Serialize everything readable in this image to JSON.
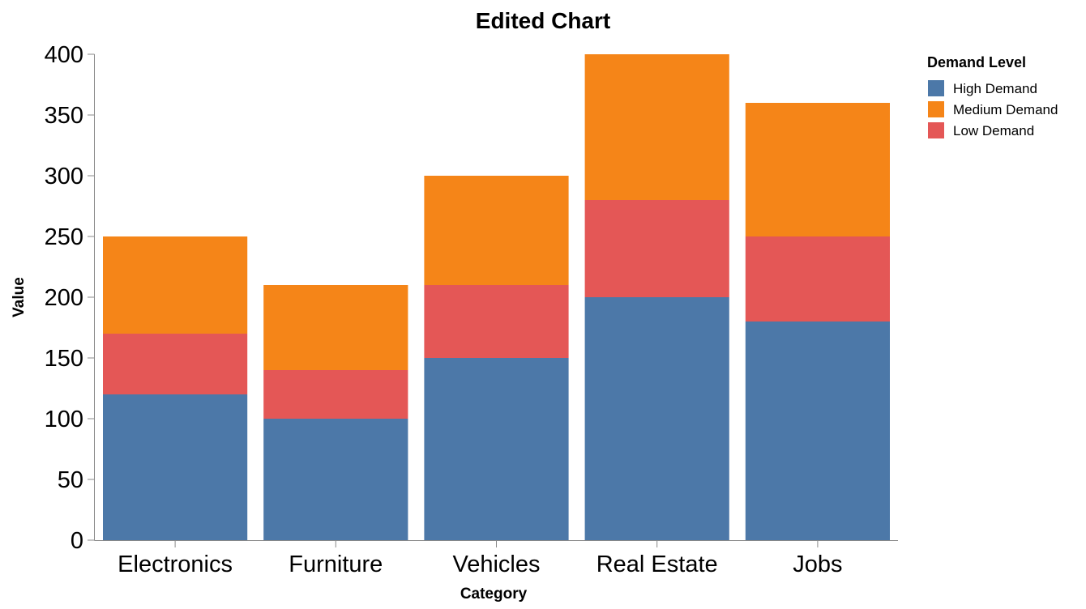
{
  "chart_data": {
    "type": "bar",
    "stacked": true,
    "title": "Edited Chart",
    "xlabel": "Category",
    "ylabel": "Value",
    "ylim": [
      0,
      400
    ],
    "yticks": [
      0,
      50,
      100,
      150,
      200,
      250,
      300,
      350,
      400
    ],
    "categories": [
      "Electronics",
      "Furniture",
      "Vehicles",
      "Real Estate",
      "Jobs"
    ],
    "stack_order": [
      "High Demand",
      "Low Demand",
      "Medium Demand"
    ],
    "series": [
      {
        "name": "High Demand",
        "color": "#4c78a8",
        "values": [
          120,
          100,
          150,
          200,
          180
        ]
      },
      {
        "name": "Medium Demand",
        "color": "#f58518",
        "values": [
          80,
          70,
          90,
          120,
          110
        ]
      },
      {
        "name": "Low Demand",
        "color": "#e45756",
        "values": [
          50,
          40,
          60,
          80,
          70
        ]
      }
    ],
    "legend": {
      "title": "Demand Level",
      "position": "top-right"
    },
    "grid": false
  }
}
